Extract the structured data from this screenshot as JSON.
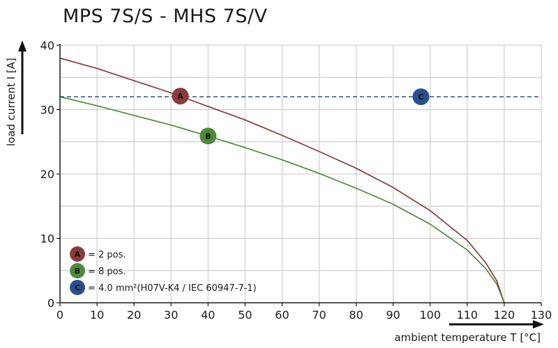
{
  "chart_data": {
    "type": "line",
    "title": "MPS 7S/S - MHS 7S/V",
    "xlabel": "ambient temperature T [°C]",
    "ylabel": "load current I [A]",
    "xlim": [
      0,
      130
    ],
    "ylim": [
      0,
      40
    ],
    "xticks": [
      0,
      10,
      20,
      30,
      40,
      50,
      60,
      70,
      80,
      90,
      100,
      110,
      120,
      130
    ],
    "yticks": [
      0,
      10,
      20,
      30,
      40
    ],
    "grid": true,
    "series": [
      {
        "name": "A",
        "color": "#8b3a3a",
        "style": "solid",
        "x": [
          0,
          10,
          20,
          30,
          40,
          50,
          60,
          70,
          80,
          90,
          100,
          110,
          115,
          118,
          120
        ],
        "y": [
          38.0,
          36.4,
          34.5,
          32.6,
          30.5,
          28.4,
          26.0,
          23.5,
          20.9,
          17.9,
          14.3,
          9.7,
          6.2,
          3.4,
          0
        ]
      },
      {
        "name": "B",
        "color": "#4e8a3a",
        "style": "solid",
        "x": [
          0,
          10,
          20,
          30,
          40,
          50,
          60,
          70,
          80,
          90,
          100,
          110,
          115,
          118,
          120
        ],
        "y": [
          32.0,
          30.6,
          29.1,
          27.6,
          25.9,
          24.1,
          22.2,
          20.1,
          17.8,
          15.3,
          12.2,
          8.2,
          5.3,
          2.9,
          0
        ]
      },
      {
        "name": "C",
        "color": "#2a4f8f",
        "style": "dashed",
        "x": [
          0,
          130
        ],
        "y": [
          32,
          32
        ]
      }
    ],
    "markers": [
      {
        "label": "A",
        "x": 32.5,
        "y": 32.1,
        "color": "#8b3a3a"
      },
      {
        "label": "B",
        "x": 40,
        "y": 25.9,
        "color": "#4e8a3a"
      },
      {
        "label": "C",
        "x": 97.5,
        "y": 32,
        "color": "#2a4f8f"
      }
    ],
    "legend": {
      "placement": "bottom-left",
      "entries": [
        {
          "letter": "A",
          "text": "= 2 pos.",
          "color": "#8b3a3a"
        },
        {
          "letter": "B",
          "text": "= 8 pos.",
          "color": "#4e8a3a"
        },
        {
          "letter": "C",
          "text": "= 4.0 mm²(H07V-K4 / IEC 60947-7-1)",
          "color": "#2a4f8f"
        }
      ]
    }
  }
}
